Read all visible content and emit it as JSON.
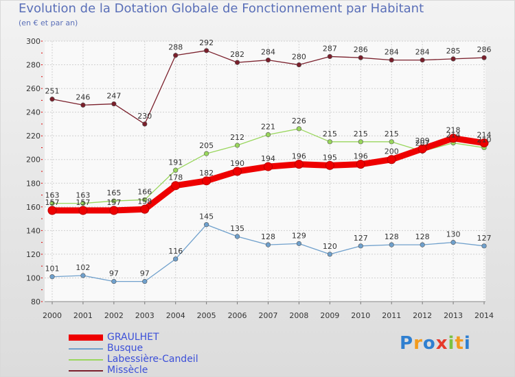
{
  "title": "Evolution de la Dotation Globale de Fonctionnement par Habitant",
  "subtitle": "(en € et par an)",
  "colors": {
    "GRAULHET": "#ee0000",
    "Busque": "#6fa0cc",
    "Labessière-Candeil": "#99d65c",
    "Missècle": "#7a1f2b"
  },
  "logo": {
    "letters": [
      "P",
      "r",
      "o",
      "x",
      "i",
      "t",
      "i"
    ],
    "colors": [
      "#2f7fd0",
      "#f29b1e",
      "#2f7fd0",
      "#e63a2a",
      "#7cc241",
      "#f29b1e",
      "#2f7fd0"
    ]
  },
  "chart_data": {
    "type": "line",
    "x": [
      2000,
      2001,
      2002,
      2003,
      2004,
      2005,
      2006,
      2007,
      2008,
      2009,
      2010,
      2011,
      2012,
      2013,
      2014
    ],
    "ylim": [
      80,
      300
    ],
    "yticks": [
      80,
      100,
      120,
      140,
      160,
      180,
      200,
      220,
      240,
      260,
      280,
      300
    ],
    "grid": true,
    "legend_position": "bottom-left",
    "series": [
      {
        "name": "GRAULHET",
        "values": [
          157,
          157,
          157,
          158,
          178,
          182,
          190,
          194,
          196,
          195,
          196,
          200,
          209,
          218,
          214
        ]
      },
      {
        "name": "Busque",
        "values": [
          101,
          102,
          97,
          97,
          116,
          145,
          135,
          128,
          129,
          120,
          127,
          128,
          128,
          130,
          127
        ]
      },
      {
        "name": "Labessière-Candeil",
        "values": [
          163,
          163,
          165,
          166,
          191,
          205,
          212,
          221,
          226,
          215,
          215,
          215,
          207,
          214,
          210
        ]
      },
      {
        "name": "Missècle",
        "values": [
          251,
          246,
          247,
          230,
          288,
          292,
          282,
          284,
          280,
          287,
          286,
          284,
          284,
          285,
          286
        ]
      }
    ]
  }
}
